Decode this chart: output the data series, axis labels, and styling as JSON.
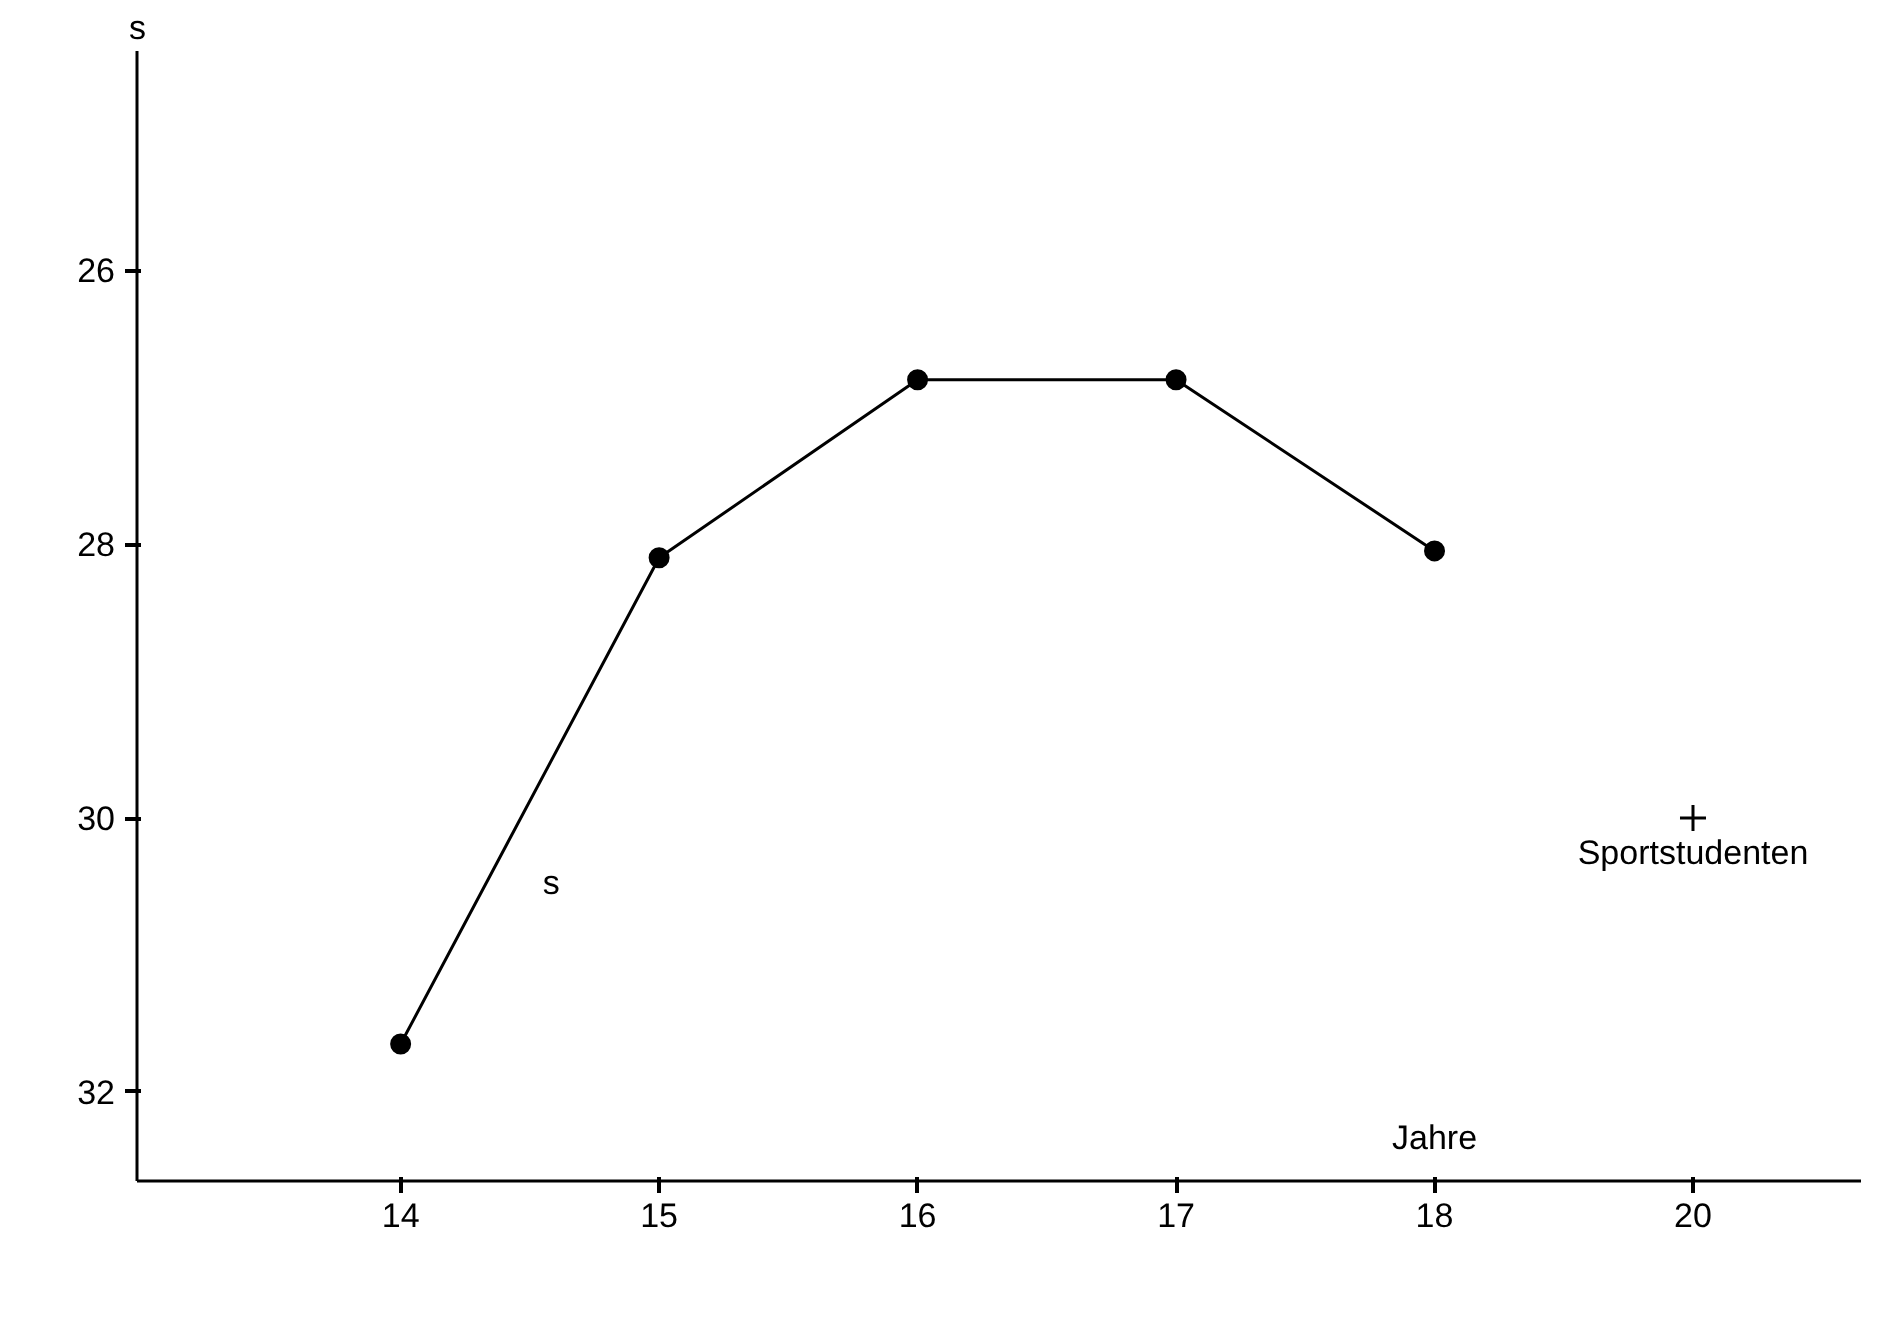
{
  "chart_data": {
    "type": "line",
    "xlabel": "Jahre",
    "ylabel": "s",
    "categories": [
      "14",
      "15",
      "16",
      "17",
      "18",
      "20"
    ],
    "ylim": [
      32.65,
      24.4
    ],
    "yticks": [
      26,
      28,
      30,
      32
    ],
    "grid": false,
    "marker": "circle",
    "line_style": "solid",
    "series": [
      {
        "name": "s",
        "color": "#000000",
        "values": [
          31.65,
          28.1,
          26.8,
          26.8,
          28.05,
          null
        ]
      },
      {
        "name": "Sportstudenten",
        "type": "scatter",
        "marker": "cross",
        "color": "#000000",
        "values": [
          null,
          null,
          null,
          null,
          null,
          30
        ]
      }
    ]
  }
}
